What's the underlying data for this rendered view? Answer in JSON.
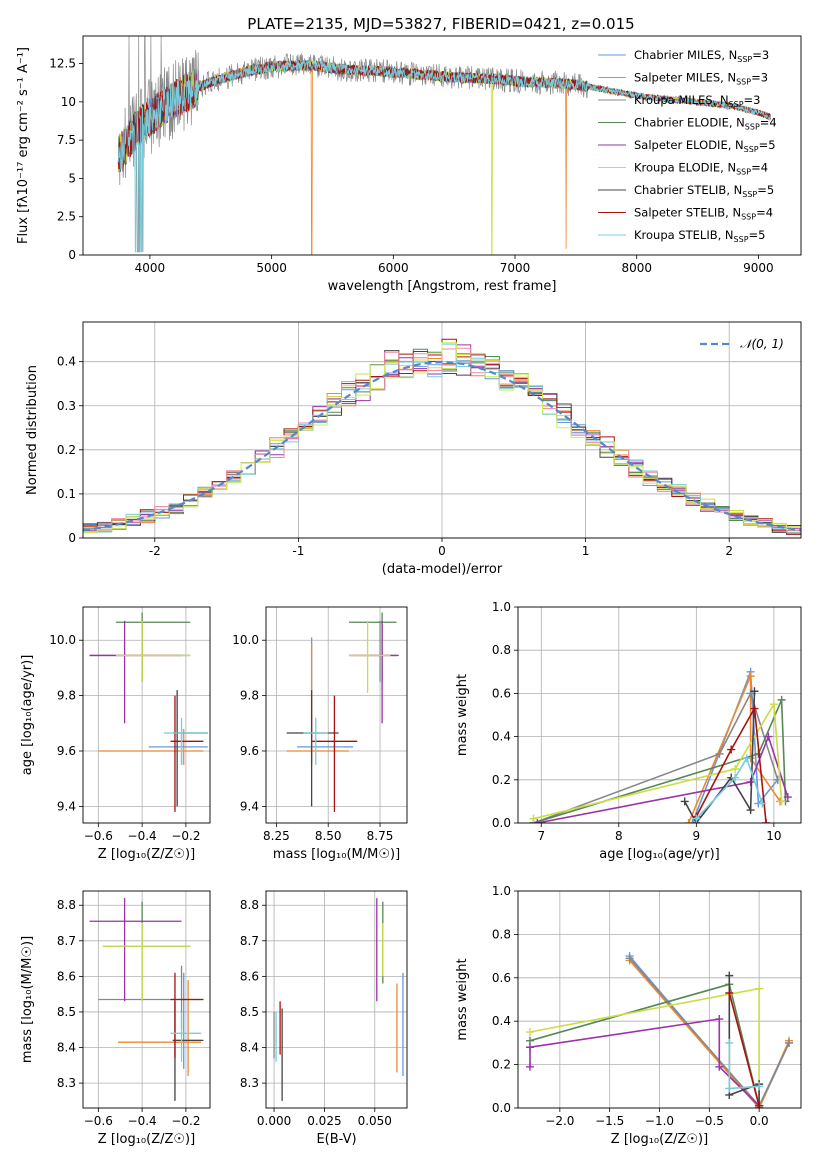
{
  "figure_title": "PLATE=2135, MJD=53827, FIBERID=0421, z=0.015",
  "colors": {
    "series": [
      "#6699dd",
      "#ee8833",
      "#888888",
      "#558855",
      "#9933aa",
      "#ccdd44",
      "#444444",
      "#aa1111",
      "#77ccdd"
    ],
    "gaussian": "#5588cc",
    "grid": "#b0b0b0",
    "pink": "#ee88aa",
    "lime": "#ccee55"
  },
  "legend_spectrum": [
    {
      "base": "Chabrier MILES, N",
      "sub": "SSP",
      "tail": "=3"
    },
    {
      "base": "Salpeter MILES, N",
      "sub": "SSP",
      "tail": "=3"
    },
    {
      "base": "Kroupa MILES, N",
      "sub": "SSP",
      "tail": "=3"
    },
    {
      "base": "Chabrier ELODIE, N",
      "sub": "SSP",
      "tail": "=4"
    },
    {
      "base": "Salpeter ELODIE, N",
      "sub": "SSP",
      "tail": "=5"
    },
    {
      "base": "Kroupa ELODIE, N",
      "sub": "SSP",
      "tail": "=4"
    },
    {
      "base": "Chabrier STELIB, N",
      "sub": "SSP",
      "tail": "=5"
    },
    {
      "base": "Salpeter STELIB, N",
      "sub": "SSP",
      "tail": "=4"
    },
    {
      "base": "Kroupa STELIB, N",
      "sub": "SSP",
      "tail": "=5"
    }
  ],
  "chart_data": [
    {
      "id": "spectrum",
      "type": "line",
      "title": "PLATE=2135, MJD=53827, FIBERID=0421, z=0.015",
      "xlabel": "wavelength [Angstrom, rest frame]",
      "ylabel": "Flux [fλ10⁻¹⁷ erg cm⁻² s⁻¹ A⁻¹]",
      "xlim": [
        3450,
        9350
      ],
      "ylim": [
        0,
        14.3
      ],
      "xticks": [
        4000,
        5000,
        6000,
        7000,
        8000,
        9000
      ],
      "yticks": [
        0.0,
        2.5,
        5.0,
        7.5,
        10.0,
        12.5
      ],
      "continuum": [
        [
          3740,
          6.5
        ],
        [
          3800,
          7.2
        ],
        [
          3900,
          8.3
        ],
        [
          4000,
          9.0
        ],
        [
          4100,
          9.6
        ],
        [
          4300,
          10.6
        ],
        [
          4500,
          11.3
        ],
        [
          4800,
          12.0
        ],
        [
          5000,
          12.3
        ],
        [
          5300,
          12.4
        ],
        [
          5600,
          12.1
        ],
        [
          5900,
          12.0
        ],
        [
          6200,
          11.8
        ],
        [
          6500,
          11.6
        ],
        [
          6800,
          11.5
        ],
        [
          7100,
          11.3
        ],
        [
          7400,
          11.2
        ],
        [
          7600,
          11.0
        ],
        [
          7800,
          10.7
        ],
        [
          8000,
          10.4
        ],
        [
          8200,
          10.2
        ],
        [
          8500,
          10.0
        ],
        [
          8800,
          9.7
        ],
        [
          9000,
          9.3
        ],
        [
          9100,
          9.0
        ]
      ],
      "spikes": [
        [
          5330,
          0
        ],
        [
          6810,
          0
        ],
        [
          7420,
          0.4
        ],
        [
          3890,
          0.2
        ],
        [
          3935,
          0.2
        ]
      ],
      "grid": false,
      "legend": "upper right"
    },
    {
      "id": "residuals",
      "type": "histogram",
      "xlabel": "(data-model)/error",
      "ylabel": "Normed distribution",
      "xlim": [
        -2.5,
        2.5
      ],
      "ylim": [
        0,
        0.49
      ],
      "xticks": [
        -2,
        -1,
        0,
        1,
        2
      ],
      "yticks": [
        0.0,
        0.1,
        0.2,
        0.3,
        0.4
      ],
      "bin_width": 0.1,
      "legend_label": "𝒩(0, 1)",
      "grid": true,
      "legend": "upper right"
    },
    {
      "id": "age_vs_Z",
      "type": "errorbar",
      "xlabel": "Z [log₁₀(Z/Z☉)]",
      "ylabel": "age  [log₁₀(age/yr)]",
      "xlim": [
        -0.67,
        -0.09
      ],
      "ylim": [
        9.34,
        10.12
      ],
      "xticks": [
        -0.6,
        -0.4,
        -0.2
      ],
      "xticklabels": [
        "−0.6",
        "−0.4",
        "−0.2"
      ],
      "yticks": [
        9.4,
        9.6,
        9.8,
        10.0
      ],
      "yticklabels": [
        "9.4",
        "9.6",
        "9.8",
        "10.0"
      ],
      "points": [
        {
          "c": 0,
          "x": -0.22,
          "y": 9.615,
          "xl": -0.37,
          "xh": -0.1,
          "yl": 9.55,
          "yh": 9.68
        },
        {
          "c": 1,
          "x": -0.21,
          "y": 9.6,
          "xl": -0.6,
          "xh": -0.12,
          "yl": 9.55,
          "yh": 9.68
        },
        {
          "c": 2,
          "x": -0.4,
          "y": 9.945,
          "xl": -0.64,
          "xh": -0.18,
          "yl": 9.85,
          "yh": 10.07
        },
        {
          "c": 3,
          "x": -0.4,
          "y": 10.065,
          "xl": -0.52,
          "xh": -0.18,
          "yl": 9.85,
          "yh": 10.1
        },
        {
          "c": 4,
          "x": -0.48,
          "y": 9.945,
          "xl": -0.64,
          "xh": -0.22,
          "yl": 9.7,
          "yh": 10.07
        },
        {
          "c": 5,
          "x": -0.4,
          "y": 9.945,
          "xl": -0.52,
          "xh": -0.18,
          "yl": 9.85,
          "yh": 10.07
        },
        {
          "c": 6,
          "x": -0.24,
          "y": 9.665,
          "xl": -0.26,
          "xh": -0.1,
          "yl": 9.4,
          "yh": 9.82
        },
        {
          "c": 7,
          "x": -0.25,
          "y": 9.635,
          "xl": -0.27,
          "xh": -0.12,
          "yl": 9.38,
          "yh": 9.8
        },
        {
          "c": 8,
          "x": -0.22,
          "y": 9.665,
          "xl": -0.3,
          "xh": -0.1,
          "yl": 9.55,
          "yh": 9.72
        }
      ],
      "grid": true
    },
    {
      "id": "age_vs_mass",
      "type": "errorbar",
      "xlabel": "mass [log₁₀(M/M☉)]",
      "ylabel": "",
      "xlim": [
        8.2,
        8.88
      ],
      "ylim": [
        9.34,
        10.12
      ],
      "xticks": [
        8.25,
        8.5,
        8.75
      ],
      "xticklabels": [
        "8.25",
        "8.50",
        "8.75"
      ],
      "yticks": [
        9.4,
        9.6,
        9.8,
        10.0
      ],
      "yticklabels": [
        "9.4",
        "9.6",
        "9.8",
        "10.0"
      ],
      "points": [
        {
          "c": 0,
          "x": 8.42,
          "y": 9.615,
          "xl": 8.35,
          "xh": 8.62,
          "yl": 9.56,
          "yh": 10.01
        },
        {
          "c": 1,
          "x": 8.42,
          "y": 9.6,
          "xl": 8.3,
          "xh": 8.6,
          "yl": 9.55,
          "yh": 9.99
        },
        {
          "c": 2,
          "x": 8.75,
          "y": 9.945,
          "xl": 8.62,
          "xh": 8.83,
          "yl": 9.85,
          "yh": 10.07
        },
        {
          "c": 3,
          "x": 8.76,
          "y": 10.065,
          "xl": 8.6,
          "xh": 8.83,
          "yl": 9.85,
          "yh": 10.1
        },
        {
          "c": 4,
          "x": 8.76,
          "y": 9.945,
          "xl": 8.6,
          "xh": 8.84,
          "yl": 9.7,
          "yh": 10.07
        },
        {
          "c": 5,
          "x": 8.69,
          "y": 9.945,
          "xl": 8.6,
          "xh": 8.8,
          "yl": 9.81,
          "yh": 10.07
        },
        {
          "c": 6,
          "x": 8.42,
          "y": 9.665,
          "xl": 8.3,
          "xh": 8.55,
          "yl": 9.4,
          "yh": 9.82
        },
        {
          "c": 7,
          "x": 8.53,
          "y": 9.635,
          "xl": 8.42,
          "xh": 8.64,
          "yl": 9.38,
          "yh": 9.8
        },
        {
          "c": 8,
          "x": 8.44,
          "y": 9.665,
          "xl": 8.38,
          "xh": 8.5,
          "yl": 9.55,
          "yh": 9.72
        }
      ],
      "grid": true
    },
    {
      "id": "weight_vs_age",
      "type": "line",
      "xlabel": "age  [log₁₀(age/yr)]",
      "ylabel": "mass weight",
      "xlim": [
        6.7,
        10.35
      ],
      "ylim": [
        0,
        1.0
      ],
      "xticks": [
        7,
        8,
        9,
        10
      ],
      "xticklabels": [
        "7",
        "8",
        "9",
        "10"
      ],
      "yticks": [
        0.0,
        0.2,
        0.4,
        0.6,
        0.8,
        1.0
      ],
      "yticklabels": [
        "0.0",
        "0.2",
        "0.4",
        "0.6",
        "0.8",
        "1.0"
      ],
      "series": [
        {
          "c": 0,
          "pts": [
            [
              8.95,
              0.0
            ],
            [
              9.7,
              0.7
            ],
            [
              9.8,
              0.09
            ],
            [
              10.05,
              0.2
            ]
          ]
        },
        {
          "c": 1,
          "pts": [
            [
              8.9,
              0.0
            ],
            [
              9.7,
              0.68
            ],
            [
              9.7,
              0.3
            ],
            [
              10.08,
              0.1
            ]
          ]
        },
        {
          "c": 2,
          "pts": [
            [
              6.9,
              0.0
            ],
            [
              9.3,
              0.32
            ],
            [
              9.7,
              0.6
            ],
            [
              10.05,
              0.2
            ]
          ]
        },
        {
          "c": 3,
          "pts": [
            [
              6.9,
              0.0
            ],
            [
              9.8,
              0.32
            ],
            [
              10.1,
              0.57
            ],
            [
              10.15,
              0.1
            ]
          ]
        },
        {
          "c": 4,
          "pts": [
            [
              6.95,
              0.0
            ],
            [
              9.7,
              0.19
            ],
            [
              9.93,
              0.4
            ],
            [
              10.18,
              0.12
            ]
          ]
        },
        {
          "c": 5,
          "pts": [
            [
              6.9,
              0.02
            ],
            [
              9.5,
              0.25
            ],
            [
              10.0,
              0.55
            ],
            [
              10.1,
              0.1
            ]
          ]
        },
        {
          "c": 6,
          "pts": [
            [
              8.85,
              0.1
            ],
            [
              9.0,
              0.0
            ],
            [
              9.45,
              0.21
            ],
            [
              9.7,
              0.06
            ],
            [
              9.75,
              0.61
            ]
          ]
        },
        {
          "c": 7,
          "pts": [
            [
              9.0,
              0.03
            ],
            [
              9.45,
              0.34
            ],
            [
              9.75,
              0.53
            ],
            [
              9.9,
              0.0
            ]
          ]
        },
        {
          "c": 8,
          "pts": [
            [
              9.0,
              0.02
            ],
            [
              9.5,
              0.21
            ],
            [
              9.65,
              0.3
            ],
            [
              9.85,
              0.09
            ]
          ]
        }
      ],
      "grid": true
    },
    {
      "id": "mass_vs_Z",
      "type": "errorbar",
      "xlabel": "Z [log₁₀(Z/Z☉)]",
      "ylabel": "mass [log₁₀(M/M☉)]",
      "xlim": [
        -0.67,
        -0.09
      ],
      "ylim": [
        8.23,
        8.84
      ],
      "xticks": [
        -0.6,
        -0.4,
        -0.2
      ],
      "xticklabels": [
        "−0.6",
        "−0.4",
        "−0.2"
      ],
      "yticks": [
        8.3,
        8.4,
        8.5,
        8.6,
        8.7,
        8.8
      ],
      "yticklabels": [
        "8.3",
        "8.4",
        "8.5",
        "8.6",
        "8.7",
        "8.8"
      ],
      "points": [
        {
          "c": 0,
          "x": -0.21,
          "y": 8.42,
          "xl": -0.26,
          "xh": -0.13,
          "yl": 8.34,
          "yh": 8.61
        },
        {
          "c": 1,
          "x": -0.19,
          "y": 8.415,
          "xl": -0.51,
          "xh": -0.13,
          "yl": 8.32,
          "yh": 8.59
        },
        {
          "c": 2,
          "x": -0.22,
          "y": 8.535,
          "xl": -0.6,
          "xh": -0.12,
          "yl": 8.45,
          "yh": 8.63
        },
        {
          "c": 3,
          "x": -0.4,
          "y": 8.685,
          "xl": -0.58,
          "xh": -0.18,
          "yl": 8.53,
          "yh": 8.81
        },
        {
          "c": 4,
          "x": -0.48,
          "y": 8.755,
          "xl": -0.64,
          "xh": -0.22,
          "yl": 8.53,
          "yh": 8.82
        },
        {
          "c": 5,
          "x": -0.4,
          "y": 8.685,
          "xl": -0.58,
          "xh": -0.18,
          "yl": 8.53,
          "yh": 8.75
        },
        {
          "c": 6,
          "x": -0.25,
          "y": 8.42,
          "xl": -0.26,
          "xh": -0.12,
          "yl": 8.25,
          "yh": 8.53
        },
        {
          "c": 7,
          "x": -0.25,
          "y": 8.535,
          "xl": -0.27,
          "xh": -0.12,
          "yl": 8.37,
          "yh": 8.61
        },
        {
          "c": 8,
          "x": -0.22,
          "y": 8.44,
          "xl": -0.27,
          "xh": -0.13,
          "yl": 8.36,
          "yh": 8.5
        }
      ],
      "grid": true
    },
    {
      "id": "mass_vs_EBV",
      "type": "errorbar",
      "xlabel": "E(B-V)",
      "ylabel": "",
      "xlim": [
        -0.004,
        0.066
      ],
      "ylim": [
        8.23,
        8.84
      ],
      "xticks": [
        0.0,
        0.025,
        0.05
      ],
      "xticklabels": [
        "0.000",
        "0.025",
        "0.050"
      ],
      "yticks": [
        8.3,
        8.4,
        8.5,
        8.6,
        8.7,
        8.8
      ],
      "yticklabels": [
        "8.3",
        "8.4",
        "8.5",
        "8.6",
        "8.7",
        "8.8"
      ],
      "points": [
        {
          "c": 0,
          "x": 0.064,
          "y": 8.47,
          "xl": 0.064,
          "xh": 0.064,
          "yl": 8.32,
          "yh": 8.61
        },
        {
          "c": 1,
          "x": 0.061,
          "y": 8.45,
          "xl": 0.061,
          "xh": 0.061,
          "yl": 8.33,
          "yh": 8.58
        },
        {
          "c": 2,
          "x": 0.0,
          "y": 8.42,
          "xl": 0.0,
          "xh": 0.0,
          "yl": 8.37,
          "yh": 8.5
        },
        {
          "c": 3,
          "x": 0.054,
          "y": 8.7,
          "xl": 0.054,
          "xh": 0.054,
          "yl": 8.58,
          "yh": 8.81
        },
        {
          "c": 4,
          "x": 0.051,
          "y": 8.7,
          "xl": 0.051,
          "xh": 0.051,
          "yl": 8.53,
          "yh": 8.82
        },
        {
          "c": 5,
          "x": 0.054,
          "y": 8.68,
          "xl": 0.054,
          "xh": 0.054,
          "yl": 8.6,
          "yh": 8.75
        },
        {
          "c": 6,
          "x": 0.004,
          "y": 8.4,
          "xl": 0.004,
          "xh": 0.004,
          "yl": 8.25,
          "yh": 8.51
        },
        {
          "c": 7,
          "x": 0.003,
          "y": 8.45,
          "xl": 0.003,
          "xh": 0.003,
          "yl": 8.38,
          "yh": 8.53
        },
        {
          "c": 8,
          "x": 0.001,
          "y": 8.42,
          "xl": 0.001,
          "xh": 0.001,
          "yl": 8.36,
          "yh": 8.5
        }
      ],
      "grid": true
    },
    {
      "id": "weight_vs_Z",
      "type": "line",
      "xlabel": "Z [log₁₀(Z/Z☉)]",
      "ylabel": "mass weight",
      "xlim": [
        -2.42,
        0.42
      ],
      "ylim": [
        0,
        1.0
      ],
      "xticks": [
        -2.0,
        -1.5,
        -1.0,
        -0.5,
        0.0
      ],
      "xticklabels": [
        "−2.0",
        "−1.5",
        "−1.0",
        "−0.5",
        "0.0"
      ],
      "yticks": [
        0.0,
        0.2,
        0.4,
        0.6,
        0.8,
        1.0
      ],
      "yticklabels": [
        "0.0",
        "0.2",
        "0.4",
        "0.6",
        "0.8",
        "1.0"
      ],
      "series": [
        {
          "c": 0,
          "pts": [
            [
              -1.3,
              0.7
            ],
            [
              0.0,
              0.0
            ],
            [
              0.3,
              0.3
            ]
          ]
        },
        {
          "c": 1,
          "pts": [
            [
              -1.3,
              0.68
            ],
            [
              0.0,
              0.0
            ],
            [
              0.3,
              0.31
            ]
          ]
        },
        {
          "c": 2,
          "pts": [
            [
              -1.3,
              0.69
            ],
            [
              0.0,
              0.01
            ],
            [
              0.3,
              0.3
            ]
          ]
        },
        {
          "c": 3,
          "pts": [
            [
              -2.3,
              0.31
            ],
            [
              -0.3,
              0.57
            ],
            [
              0.0,
              0.01
            ]
          ]
        },
        {
          "c": 4,
          "pts": [
            [
              -2.3,
              0.19
            ],
            [
              -2.3,
              0.28
            ],
            [
              -0.4,
              0.41
            ],
            [
              -0.4,
              0.19
            ],
            [
              0.0,
              0.01
            ]
          ]
        },
        {
          "c": 5,
          "pts": [
            [
              -2.3,
              0.35
            ],
            [
              0.0,
              0.55
            ],
            [
              0.0,
              0.0
            ]
          ]
        },
        {
          "c": 6,
          "pts": [
            [
              -0.3,
              0.61
            ],
            [
              -0.3,
              0.06
            ],
            [
              0.0,
              0.11
            ],
            [
              0.0,
              0.0
            ]
          ]
        },
        {
          "c": 7,
          "pts": [
            [
              -0.3,
              0.53
            ],
            [
              0.0,
              0.01
            ]
          ]
        },
        {
          "c": 8,
          "pts": [
            [
              -0.3,
              0.3
            ],
            [
              -0.3,
              0.09
            ],
            [
              0.0,
              0.1
            ]
          ]
        }
      ],
      "grid": true
    }
  ]
}
